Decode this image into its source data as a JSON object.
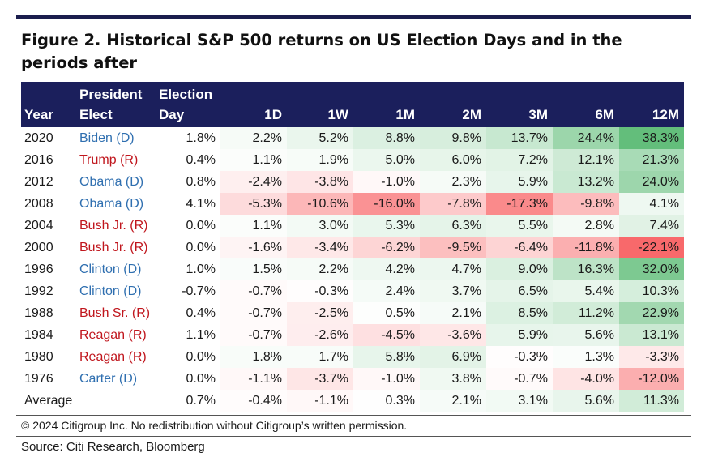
{
  "title": "Figure 2. Historical S&P 500 returns on US Election Days and in the periods after",
  "footnote": "© 2024 Citigroup Inc. No redistribution without Citigroup’s written permission.",
  "source": "Source: Citi Research, Bloomberg",
  "colors": {
    "header_bg": "#1b1f5c",
    "republican": "#c0161d",
    "democrat": "#2f6fb0",
    "positive": "#63be7b",
    "negative": "#f8696b"
  },
  "chart_data": {
    "type": "table",
    "headers": [
      "Year",
      "President Elect",
      "Election Day",
      "1D",
      "1W",
      "1M",
      "2M",
      "3M",
      "6M",
      "12M"
    ],
    "rows": [
      {
        "year": "2020",
        "president": "Biden (D)",
        "party": "D",
        "values": [
          "1.8%",
          "2.2%",
          "5.2%",
          "8.8%",
          "9.8%",
          "13.7%",
          "24.4%",
          "38.3%"
        ]
      },
      {
        "year": "2016",
        "president": "Trump (R)",
        "party": "R",
        "values": [
          "0.4%",
          "1.1%",
          "1.9%",
          "5.0%",
          "6.0%",
          "7.2%",
          "12.1%",
          "21.3%"
        ]
      },
      {
        "year": "2012",
        "president": "Obama (D)",
        "party": "D",
        "values": [
          "0.8%",
          "-2.4%",
          "-3.8%",
          "-1.0%",
          "2.3%",
          "5.9%",
          "13.2%",
          "24.0%"
        ]
      },
      {
        "year": "2008",
        "president": "Obama (D)",
        "party": "D",
        "values": [
          "4.1%",
          "-5.3%",
          "-10.6%",
          "-16.0%",
          "-7.8%",
          "-17.3%",
          "-9.8%",
          "4.1%"
        ]
      },
      {
        "year": "2004",
        "president": "Bush Jr. (R)",
        "party": "R",
        "values": [
          "0.0%",
          "1.1%",
          "3.0%",
          "5.3%",
          "6.3%",
          "5.5%",
          "2.8%",
          "7.4%"
        ]
      },
      {
        "year": "2000",
        "president": "Bush Jr. (R)",
        "party": "R",
        "values": [
          "0.0%",
          "-1.6%",
          "-3.4%",
          "-6.2%",
          "-9.5%",
          "-6.4%",
          "-11.8%",
          "-22.1%"
        ]
      },
      {
        "year": "1996",
        "president": "Clinton (D)",
        "party": "D",
        "values": [
          "1.0%",
          "1.5%",
          "2.2%",
          "4.2%",
          "4.7%",
          "9.0%",
          "16.3%",
          "32.0%"
        ]
      },
      {
        "year": "1992",
        "president": "Clinton (D)",
        "party": "D",
        "values": [
          "-0.7%",
          "-0.7%",
          "-0.3%",
          "2.4%",
          "3.7%",
          "6.5%",
          "5.4%",
          "10.3%"
        ]
      },
      {
        "year": "1988",
        "president": "Bush Sr. (R)",
        "party": "R",
        "values": [
          "0.4%",
          "-0.7%",
          "-2.5%",
          "0.5%",
          "2.1%",
          "8.5%",
          "11.2%",
          "22.9%"
        ]
      },
      {
        "year": "1984",
        "president": "Reagan (R)",
        "party": "R",
        "values": [
          "1.1%",
          "-0.7%",
          "-2.6%",
          "-4.5%",
          "-3.6%",
          "5.9%",
          "5.6%",
          "13.1%"
        ]
      },
      {
        "year": "1980",
        "president": "Reagan (R)",
        "party": "R",
        "values": [
          "0.0%",
          "1.8%",
          "1.7%",
          "5.8%",
          "6.9%",
          "-0.3%",
          "1.3%",
          "-3.3%"
        ]
      },
      {
        "year": "1976",
        "president": "Carter (D)",
        "party": "D",
        "values": [
          "0.0%",
          "-1.1%",
          "-3.7%",
          "-1.0%",
          "3.8%",
          "-0.7%",
          "-4.0%",
          "-12.0%"
        ]
      }
    ],
    "average": {
      "label": "Average",
      "values": [
        "0.7%",
        "-0.4%",
        "-1.1%",
        "0.3%",
        "2.1%",
        "3.1%",
        "5.6%",
        "11.3%"
      ]
    }
  }
}
